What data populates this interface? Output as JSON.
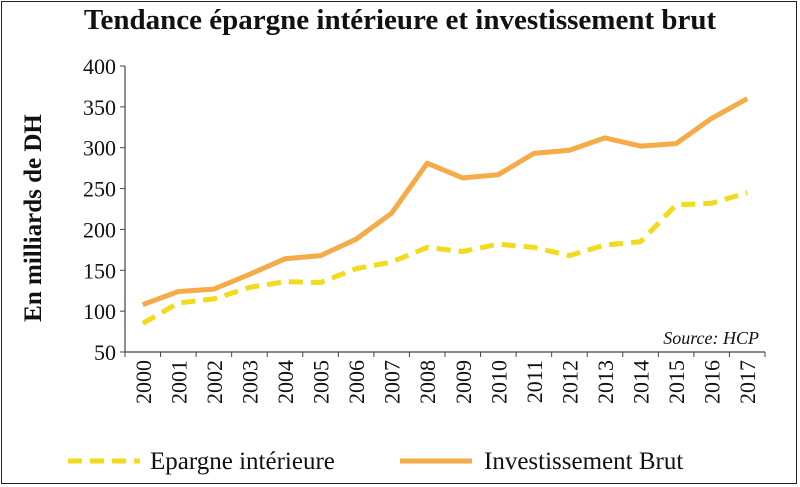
{
  "chart_data": {
    "type": "line",
    "title": "Tendance épargne intérieure et investissement brut",
    "ylabel": "En milliards de DH",
    "xlabel": "",
    "source": "Source: HCP",
    "categories": [
      "2000",
      "2001",
      "2002",
      "2003",
      "2004",
      "2005",
      "2006",
      "2007",
      "2008",
      "2009",
      "2010",
      "2011",
      "2012",
      "2013",
      "2014",
      "2015",
      "2016",
      "2017"
    ],
    "ylim": [
      50,
      400
    ],
    "yticks": [
      50,
      100,
      150,
      200,
      250,
      300,
      350,
      400
    ],
    "grid": false,
    "legend_position": "bottom",
    "series": [
      {
        "name": "Epargne intérieure",
        "style": "dashed",
        "color": "#F2DA1C",
        "values": [
          85,
          110,
          115,
          129,
          136,
          135,
          152,
          160,
          178,
          173,
          182,
          178,
          168,
          181,
          185,
          230,
          232,
          245
        ]
      },
      {
        "name": "Investissement Brut",
        "style": "solid",
        "color": "#F4AB48",
        "values": [
          108,
          124,
          127,
          145,
          164,
          168,
          188,
          220,
          281,
          263,
          267,
          293,
          297,
          312,
          302,
          305,
          336,
          360
        ]
      }
    ]
  }
}
